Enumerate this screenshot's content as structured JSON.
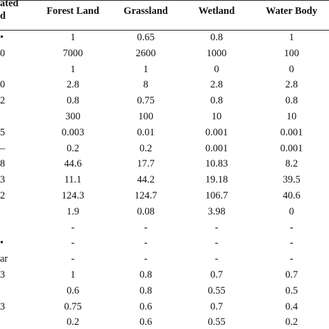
{
  "table": {
    "header": [
      "ated\nd",
      "Forest Land",
      "Grassland",
      "Wetland",
      "Water Body"
    ],
    "rows": [
      [
        "•",
        1,
        0.65,
        0.8,
        1
      ],
      [
        "0",
        7000,
        2600,
        1000,
        100
      ],
      [
        null,
        1,
        1,
        0,
        0
      ],
      [
        "0",
        2.8,
        8,
        2.8,
        2.8
      ],
      [
        "2",
        0.8,
        0.75,
        0.8,
        0.8
      ],
      [
        null,
        300,
        100,
        10,
        10
      ],
      [
        "5",
        0.003,
        0.01,
        0.001,
        0.001
      ],
      [
        "–",
        0.2,
        0.2,
        0.001,
        0.001
      ],
      [
        "8",
        44.6,
        17.7,
        10.83,
        8.2
      ],
      [
        "3",
        11.1,
        44.2,
        19.18,
        39.5
      ],
      [
        "2",
        124.3,
        124.7,
        106.7,
        40.6
      ],
      [
        null,
        1.9,
        0.08,
        3.98,
        0
      ],
      [
        null,
        "-",
        "-",
        "-",
        "-"
      ],
      [
        "•",
        "-",
        "-",
        "-",
        "-"
      ],
      [
        "ar",
        "-",
        "-",
        "-",
        "-"
      ],
      [
        "3",
        1,
        0.8,
        0.7,
        0.7
      ],
      [
        null,
        0.6,
        0.8,
        0.55,
        0.5
      ],
      [
        "3",
        0.75,
        0.6,
        0.7,
        0.4
      ],
      [
        null,
        0.2,
        0.6,
        0.55,
        0.2
      ]
    ]
  }
}
